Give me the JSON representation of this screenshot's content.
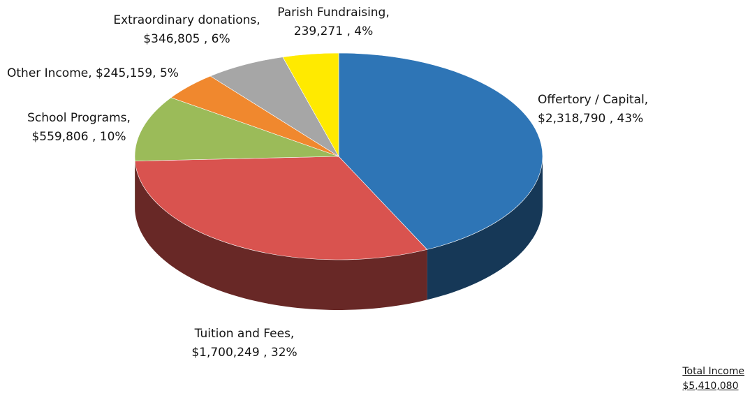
{
  "chart_data": {
    "type": "pie",
    "title": "",
    "style": "3d",
    "slices": [
      {
        "name": "Offertory / Capital",
        "value_text": "$2,318,790",
        "value": 2318790,
        "percent": 43,
        "color": "#2e75b6"
      },
      {
        "name": "Tuition and Fees",
        "value_text": "$1,700,249",
        "value": 1700249,
        "percent": 32,
        "color": "#d9534f"
      },
      {
        "name": "School Programs",
        "value_text": "$559,806",
        "value": 559806,
        "percent": 10,
        "color": "#9bbb59"
      },
      {
        "name": "Other Income",
        "value_text": "$245,159",
        "value": 245159,
        "percent": 5,
        "color": "#f0882e"
      },
      {
        "name": "Extraordinary donations",
        "value_text": "$346,805",
        "value": 346805,
        "percent": 6,
        "color": "#a6a6a6"
      },
      {
        "name": "Parish Fundraising",
        "value_text": "239,271",
        "value": 239271,
        "percent": 4,
        "color": "#ffea00"
      }
    ]
  },
  "labels": {
    "offertory": {
      "line1": "Offertory / Capital,",
      "line2": "$2,318,790 , 43%"
    },
    "tuition": {
      "line1": "Tuition and Fees,",
      "line2": "$1,700,249 , 32%"
    },
    "school": {
      "line1": "School Programs,",
      "line2": "$559,806 , 10%"
    },
    "other": {
      "line1": "Other Income,  $245,159, 5%"
    },
    "extra": {
      "line1": "Extraordinary donations,",
      "line2": "$346,805 , 6%"
    },
    "parish": {
      "line1": "Parish Fundraising,",
      "line2": "239,271 , 4%"
    }
  },
  "total": {
    "label": "Total Income",
    "value": "$5,410,080"
  }
}
